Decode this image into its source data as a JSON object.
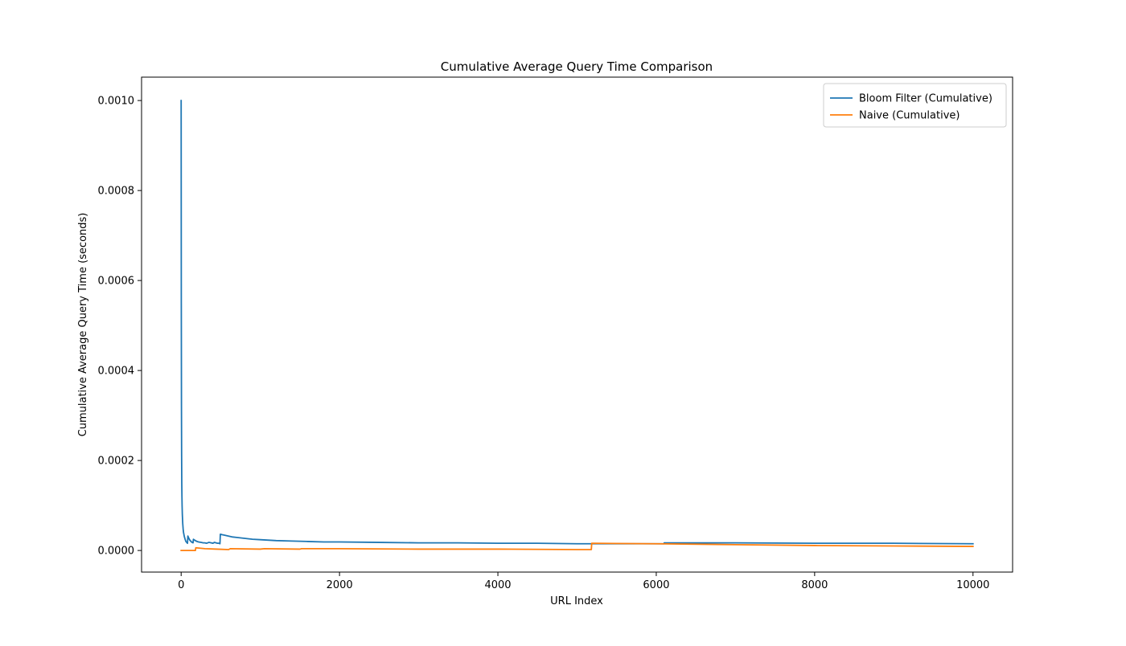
{
  "chart_data": {
    "type": "line",
    "title": "Cumulative Average Query Time Comparison",
    "xlabel": "URL Index",
    "ylabel": "Cumulative Average Query Time (seconds)",
    "xlim": [
      -500,
      10500
    ],
    "ylim": [
      -4.8e-05,
      0.001052
    ],
    "xticks": [
      0,
      2000,
      4000,
      6000,
      8000,
      10000
    ],
    "xtick_labels": [
      "0",
      "2000",
      "4000",
      "6000",
      "8000",
      "10000"
    ],
    "yticks": [
      0.0,
      0.0002,
      0.0004,
      0.0006,
      0.0008,
      0.001
    ],
    "ytick_labels": [
      "0.0000",
      "0.0002",
      "0.0004",
      "0.0006",
      "0.0008",
      "0.0010"
    ],
    "grid": false,
    "legend_position": "top-right",
    "series": [
      {
        "name": "Bloom Filter (Cumulative)",
        "color": "#1f77b4",
        "x": [
          0,
          2,
          4,
          6,
          8,
          10,
          12,
          15,
          20,
          25,
          30,
          40,
          50,
          60,
          70,
          80,
          85,
          90,
          100,
          110,
          120,
          130,
          140,
          150,
          155,
          160,
          180,
          200,
          220,
          250,
          280,
          300,
          320,
          350,
          380,
          400,
          420,
          440,
          460,
          480,
          490,
          495,
          500,
          520,
          550,
          600,
          650,
          700,
          800,
          900,
          1000,
          1200,
          1400,
          1600,
          1800,
          2000,
          2500,
          3000,
          3500,
          4000,
          4500,
          5000,
          5200,
          6000,
          6100,
          6100,
          7000,
          8000,
          9000,
          10000
        ],
        "y": [
          0.001,
          0.00055,
          0.00032,
          0.00021,
          0.00015,
          0.00012,
          0.0001,
          8e-05,
          6e-05,
          4.8e-05,
          4e-05,
          3.1e-05,
          2.5e-05,
          2e-05,
          1.8e-05,
          1.6e-05,
          3.2e-05,
          3e-05,
          2.6e-05,
          2.3e-05,
          2.1e-05,
          1.9e-05,
          1.8e-05,
          1.7e-05,
          2.5e-05,
          2.4e-05,
          2.2e-05,
          2e-05,
          1.9e-05,
          1.8e-05,
          1.7e-05,
          1.7e-05,
          1.6e-05,
          1.8e-05,
          1.7e-05,
          1.6e-05,
          1.8e-05,
          1.7e-05,
          1.6e-05,
          1.6e-05,
          1.5e-05,
          3.6e-05,
          3.6e-05,
          3.5e-05,
          3.4e-05,
          3.2e-05,
          3e-05,
          2.9e-05,
          2.7e-05,
          2.5e-05,
          2.4e-05,
          2.2e-05,
          2.1e-05,
          2e-05,
          1.9e-05,
          1.9e-05,
          1.8e-05,
          1.7e-05,
          1.7e-05,
          1.6e-05,
          1.6e-05,
          1.5e-05,
          1.5e-05,
          1.5e-05,
          1.5e-05,
          1.7e-05,
          1.7e-05,
          1.6e-05,
          1.6e-05,
          1.5e-05
        ]
      },
      {
        "name": "Naive (Cumulative)",
        "color": "#ff7f0e",
        "x": [
          0,
          100,
          180,
          185,
          300,
          450,
          600,
          620,
          1000,
          1050,
          1500,
          1520,
          2000,
          3000,
          4000,
          5000,
          5180,
          5185,
          6000,
          7000,
          8000,
          9000,
          10000
        ],
        "y": [
          0.0,
          0.0,
          0.0,
          6e-06,
          4e-06,
          3e-06,
          2e-06,
          4e-06,
          3e-06,
          4e-06,
          3e-06,
          4e-06,
          4e-06,
          3e-06,
          3e-06,
          2e-06,
          2e-06,
          1.6e-05,
          1.5e-05,
          1.3e-05,
          1.1e-05,
          1e-05,
          9e-06
        ]
      }
    ]
  }
}
